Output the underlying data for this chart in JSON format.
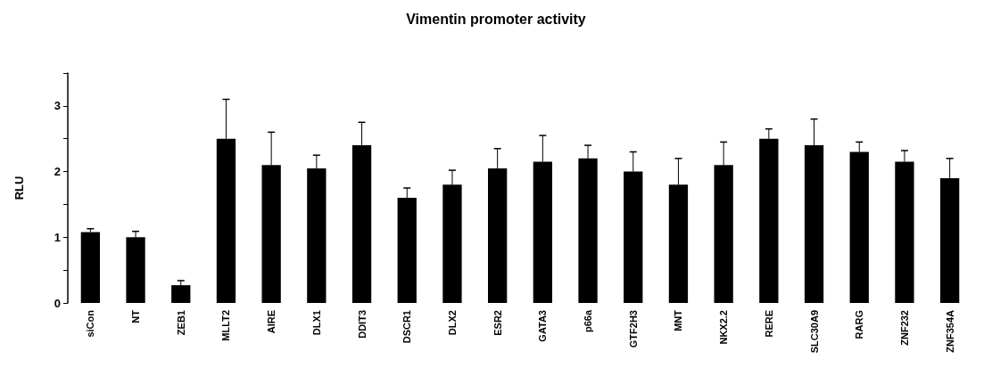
{
  "chart_data": {
    "type": "bar",
    "title": "Vimentin promoter activity",
    "ylabel": "RLU",
    "categories": [
      "siCon",
      "NT",
      "ZEB1",
      "MLLT2",
      "AIRE",
      "DLX1",
      "DDIT3",
      "DSCR1",
      "DLX2",
      "ESR2",
      "GATA3",
      "p66a",
      "GTF2H3",
      "MNT",
      "NKX2.2",
      "RERE",
      "SLC30A9",
      "RARG",
      "ZNF232",
      "ZNF354A"
    ],
    "values": [
      1.08,
      1.0,
      0.27,
      2.5,
      2.1,
      2.05,
      2.4,
      1.6,
      1.8,
      2.05,
      2.15,
      2.2,
      2.0,
      1.8,
      2.1,
      2.5,
      2.4,
      2.3,
      2.15,
      1.9
    ],
    "errors": [
      [
        1.08,
        1.13
      ],
      [
        1.0,
        1.09
      ],
      [
        0.27,
        0.34
      ],
      [
        2.5,
        3.1
      ],
      [
        2.1,
        2.6
      ],
      [
        2.05,
        2.25
      ],
      [
        2.4,
        2.75
      ],
      [
        1.6,
        1.75
      ],
      [
        1.8,
        2.02
      ],
      [
        2.05,
        2.35
      ],
      [
        2.15,
        2.55
      ],
      [
        2.2,
        2.4
      ],
      [
        2.0,
        2.3
      ],
      [
        1.8,
        2.2
      ],
      [
        2.1,
        2.45
      ],
      [
        2.5,
        2.65
      ],
      [
        2.4,
        2.8
      ],
      [
        2.3,
        2.45
      ],
      [
        2.15,
        2.32
      ],
      [
        1.9,
        2.2
      ]
    ],
    "color": "#000000",
    "ylim": [
      0,
      3.5
    ],
    "yticks": [
      0,
      {
        "value": 0.5,
        "label": null
      },
      1,
      {
        "value": 1.5,
        "label": null
      },
      2,
      {
        "value": 2.5,
        "label": null
      },
      3,
      {
        "value": 3.5,
        "label": null
      }
    ],
    "grid": false
  }
}
